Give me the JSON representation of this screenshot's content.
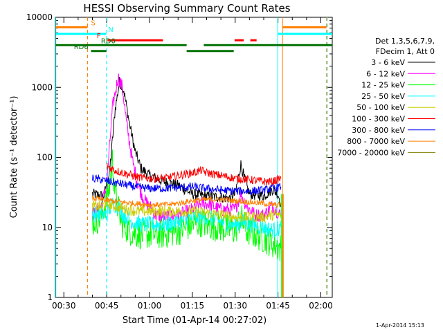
{
  "chart_data": {
    "type": "line",
    "title": "HESSI Observing Summary Count Rates",
    "xlabel": "Start Time (01-Apr-14 00:27:02)",
    "ylabel": "Count Rate (s⁻¹ detector⁻¹)",
    "yscale": "log",
    "ylim": [
      1,
      10000
    ],
    "xlim_minutes": [
      27.03,
      124.0
    ],
    "x_ticks": [
      {
        "m": 30,
        "label": "00:30"
      },
      {
        "m": 45,
        "label": "00:45"
      },
      {
        "m": 60,
        "label": "01:00"
      },
      {
        "m": 75,
        "label": "01:15"
      },
      {
        "m": 90,
        "label": "01:30"
      },
      {
        "m": 105,
        "label": "01:45"
      },
      {
        "m": 120,
        "label": "02:00"
      }
    ],
    "y_ticks": [
      {
        "v": 1,
        "label": "1"
      },
      {
        "v": 10,
        "label": "10"
      },
      {
        "v": 100,
        "label": "100"
      },
      {
        "v": 1000,
        "label": "1000"
      },
      {
        "v": 10000,
        "label": "10000"
      }
    ],
    "legend": {
      "header": [
        "Det 1,3,5,6,7,9,",
        "FDecim 1, Att 0"
      ],
      "placement": "right"
    },
    "series": [
      {
        "name": "3 - 6 keV",
        "color": "#000000",
        "noise": 0.08,
        "points": [
          [
            40,
            30
          ],
          [
            44,
            28
          ],
          [
            46,
            60
          ],
          [
            48,
            500
          ],
          [
            49.5,
            1200
          ],
          [
            51,
            900
          ],
          [
            53,
            300
          ],
          [
            55,
            120
          ],
          [
            57,
            70
          ],
          [
            60,
            55
          ],
          [
            65,
            45
          ],
          [
            70,
            40
          ],
          [
            75,
            30
          ],
          [
            80,
            28
          ],
          [
            85,
            27
          ],
          [
            88,
            26
          ],
          [
            90,
            30
          ],
          [
            92,
            80
          ],
          [
            93.5,
            45
          ],
          [
            95,
            30
          ],
          [
            100,
            28
          ],
          [
            103,
            35
          ],
          [
            105,
            30
          ],
          [
            106,
            22
          ]
        ]
      },
      {
        "name": "6 - 12 keV",
        "color": "#ff00ff",
        "noise": 0.1,
        "points": [
          [
            40,
            15
          ],
          [
            43,
            20
          ],
          [
            45,
            40
          ],
          [
            47,
            500
          ],
          [
            49,
            1400
          ],
          [
            50.5,
            1000
          ],
          [
            52,
            300
          ],
          [
            54,
            90
          ],
          [
            56,
            40
          ],
          [
            58,
            25
          ],
          [
            60,
            20
          ],
          [
            62,
            15
          ],
          [
            65,
            14
          ],
          [
            70,
            15
          ],
          [
            75,
            18
          ],
          [
            78,
            22
          ],
          [
            80,
            22
          ],
          [
            85,
            18
          ],
          [
            90,
            18
          ],
          [
            92,
            30
          ],
          [
            94,
            20
          ],
          [
            97,
            15
          ],
          [
            100,
            15
          ],
          [
            103,
            20
          ],
          [
            106,
            15
          ]
        ]
      },
      {
        "name": "12 - 25 keV",
        "color": "#00ff00",
        "noise": 0.22,
        "points": [
          [
            40,
            12
          ],
          [
            43,
            14
          ],
          [
            45,
            25
          ],
          [
            46,
            40
          ],
          [
            47,
            90
          ],
          [
            48,
            30
          ],
          [
            50,
            12
          ],
          [
            53,
            9
          ],
          [
            56,
            8
          ],
          [
            60,
            8
          ],
          [
            65,
            8
          ],
          [
            70,
            9
          ],
          [
            75,
            11
          ],
          [
            78,
            12
          ],
          [
            80,
            11
          ],
          [
            85,
            10
          ],
          [
            90,
            9
          ],
          [
            92,
            14
          ],
          [
            94,
            9
          ],
          [
            97,
            8
          ],
          [
            100,
            7
          ],
          [
            103,
            6
          ],
          [
            106,
            5
          ]
        ]
      },
      {
        "name": "25 - 50 keV",
        "color": "#00ffff",
        "noise": 0.12,
        "points": [
          [
            40,
            16
          ],
          [
            43,
            15
          ],
          [
            45,
            15
          ],
          [
            47,
            22
          ],
          [
            49,
            20
          ],
          [
            51,
            15
          ],
          [
            54,
            12
          ],
          [
            58,
            11
          ],
          [
            62,
            11
          ],
          [
            66,
            11
          ],
          [
            70,
            12
          ],
          [
            75,
            14
          ],
          [
            80,
            14
          ],
          [
            85,
            12
          ],
          [
            90,
            11
          ],
          [
            93,
            12
          ],
          [
            96,
            11
          ],
          [
            100,
            10
          ],
          [
            103,
            9
          ],
          [
            106,
            10
          ]
        ]
      },
      {
        "name": "50 - 100 keV",
        "color": "#cccc00",
        "noise": 0.08,
        "points": [
          [
            40,
            20
          ],
          [
            43,
            20
          ],
          [
            45,
            22
          ],
          [
            48,
            20
          ],
          [
            52,
            18
          ],
          [
            56,
            17
          ],
          [
            60,
            17
          ],
          [
            65,
            17
          ],
          [
            70,
            17
          ],
          [
            75,
            17
          ],
          [
            80,
            16
          ],
          [
            85,
            15
          ],
          [
            90,
            14
          ],
          [
            95,
            14
          ],
          [
            100,
            14
          ],
          [
            103,
            15
          ],
          [
            106,
            15
          ]
        ]
      },
      {
        "name": "100 - 300 keV",
        "color": "#ff0000",
        "noise": 0.06,
        "points": [
          [
            45,
            75
          ],
          [
            48,
            65
          ],
          [
            52,
            58
          ],
          [
            56,
            52
          ],
          [
            60,
            50
          ],
          [
            65,
            50
          ],
          [
            70,
            55
          ],
          [
            75,
            60
          ],
          [
            78,
            65
          ],
          [
            80,
            60
          ],
          [
            85,
            55
          ],
          [
            90,
            50
          ],
          [
            95,
            48
          ],
          [
            100,
            45
          ],
          [
            103,
            45
          ],
          [
            106,
            50
          ]
        ]
      },
      {
        "name": "300 - 800 keV",
        "color": "#0000ff",
        "noise": 0.06,
        "points": [
          [
            40,
            50
          ],
          [
            43,
            48
          ],
          [
            46,
            45
          ],
          [
            50,
            42
          ],
          [
            55,
            38
          ],
          [
            60,
            36
          ],
          [
            65,
            36
          ],
          [
            70,
            37
          ],
          [
            75,
            38
          ],
          [
            80,
            36
          ],
          [
            85,
            34
          ],
          [
            90,
            33
          ],
          [
            95,
            33
          ],
          [
            100,
            34
          ],
          [
            103,
            36
          ],
          [
            106,
            38
          ]
        ]
      },
      {
        "name": "800 - 7000 keV",
        "color": "#ff8000",
        "noise": 0.04,
        "points": [
          [
            40,
            26
          ],
          [
            43,
            25
          ],
          [
            46,
            24
          ],
          [
            50,
            23
          ],
          [
            55,
            22
          ],
          [
            60,
            21
          ],
          [
            65,
            21
          ],
          [
            70,
            22
          ],
          [
            75,
            24
          ],
          [
            80,
            25
          ],
          [
            85,
            25
          ],
          [
            90,
            24
          ],
          [
            95,
            23
          ],
          [
            100,
            22
          ],
          [
            103,
            21
          ],
          [
            106,
            21
          ]
        ]
      },
      {
        "name": "7000 - 20000 keV",
        "color": "#808000",
        "noise": 0.0,
        "points": []
      }
    ],
    "spikes": [
      {
        "m": 106.3,
        "color": "#00ff00"
      },
      {
        "m": 106.8,
        "color": "#ff8000"
      }
    ],
    "vlines": [
      {
        "m": 27.2,
        "color": "#00ffff",
        "style": "solid"
      },
      {
        "m": 38.3,
        "color": "#ff8000",
        "style": "dashed"
      },
      {
        "m": 44.9,
        "color": "#00ffff",
        "style": "dashed"
      },
      {
        "m": 104.9,
        "color": "#00ffff",
        "style": "solid"
      },
      {
        "m": 106.6,
        "color": "#ff8000",
        "style": "solid"
      },
      {
        "m": 122.0,
        "color": "#ff8000",
        "style": "dashed"
      },
      {
        "m": 122.3,
        "color": "#00ffff",
        "style": "dashed"
      }
    ],
    "flags": [
      {
        "label": "S",
        "color": "#ff8000",
        "y_value": 7200,
        "segments": [
          [
            27.2,
            38.3
          ],
          [
            106.6,
            122.0
          ]
        ],
        "label_at": 39.5
      },
      {
        "label": "N",
        "color": "#00ffff",
        "y_value": 5800,
        "segments": [
          [
            27.2,
            44.9
          ],
          [
            104.9,
            124.0
          ]
        ],
        "label_at": 45.5
      },
      {
        "label": "F",
        "color": "#ff0000",
        "y_value": 4700,
        "segments": [
          [
            45.3,
            64.7
          ],
          [
            89.8,
            93.0
          ],
          [
            95.3,
            97.5
          ]
        ],
        "label_at": 41.5
      },
      {
        "label": "RD0",
        "color": "#007000",
        "y_value": 4000,
        "segments": [
          [
            27.2,
            73.0
          ],
          [
            79.0,
            124.0
          ]
        ],
        "label_at": 43.0
      },
      {
        "label": "RD6",
        "color": "#007000",
        "y_value": 3300,
        "segments": [
          [
            39.5,
            44.9
          ],
          [
            73.0,
            89.5
          ]
        ],
        "label_at": 33.5
      }
    ]
  },
  "footer": {
    "timestamp": "1-Apr-2014 15:13"
  }
}
